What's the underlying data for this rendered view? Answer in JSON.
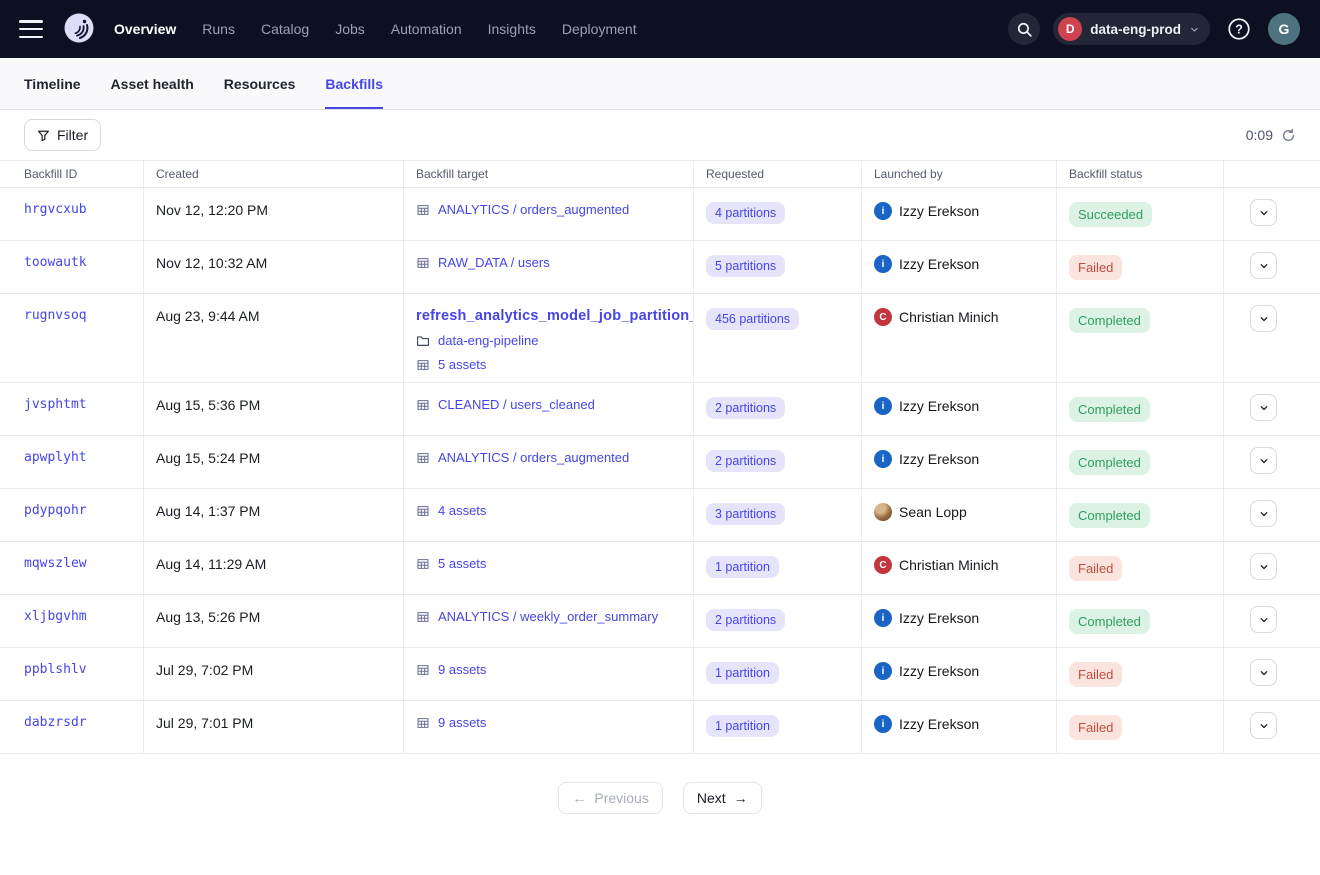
{
  "colors": {
    "accent": "#4645e7",
    "nav_bg": "#0d1020",
    "success_bg": "#dcf2e4",
    "success_text": "#2e9e5e",
    "failure_bg": "#fbe3de",
    "failure_text": "#bf4d3e",
    "partition_pill_bg": "#e6e4fa",
    "partition_pill_text": "#4645e7",
    "deployment_badge": "#cf4250",
    "izzy_avatar": "#1a64c4",
    "christian_avatar": "#c3353f"
  },
  "nav": {
    "menu_icon": "hamburger-icon",
    "logo_icon": "dagster-logo",
    "items": [
      "Overview",
      "Runs",
      "Catalog",
      "Jobs",
      "Automation",
      "Insights",
      "Deployment"
    ],
    "active_item": "Overview",
    "search_icon": "search-icon",
    "deployment_switcher": {
      "initial": "D",
      "label": "data-eng-prod",
      "chevron_icon": "chevron-down-icon"
    },
    "help_icon": "help-icon",
    "user_initial": "G"
  },
  "tabs": {
    "items": [
      "Timeline",
      "Asset health",
      "Resources",
      "Backfills"
    ],
    "active": "Backfills"
  },
  "toolbar": {
    "filter_label": "Filter",
    "filter_icon": "funnel-icon",
    "timer": "0:09",
    "refresh_icon": "refresh-icon"
  },
  "table": {
    "columns": [
      "Backfill ID",
      "Created",
      "Backfill target",
      "Requested",
      "Launched by",
      "Backfill status",
      ""
    ],
    "rows": [
      {
        "id": "hrgvcxub",
        "created": "Nov 12, 12:20 PM",
        "target": [
          {
            "icon": "table-icon",
            "text": "ANALYTICS / orders_augmented"
          }
        ],
        "requested": "4 partitions",
        "launched_by": {
          "name": "Izzy Erekson",
          "avatar": {
            "kind": "initial",
            "text": "i",
            "color": "#1a64c4"
          }
        },
        "status": {
          "label": "Succeeded",
          "kind": "success"
        }
      },
      {
        "id": "toowautk",
        "created": "Nov 12, 10:32 AM",
        "target": [
          {
            "icon": "table-icon",
            "text": "RAW_DATA / users"
          }
        ],
        "requested": "5 partitions",
        "launched_by": {
          "name": "Izzy Erekson",
          "avatar": {
            "kind": "initial",
            "text": "i",
            "color": "#1a64c4"
          }
        },
        "status": {
          "label": "Failed",
          "kind": "failure"
        }
      },
      {
        "id": "rugnvsoq",
        "created": "Aug 23, 9:44 AM",
        "tall": true,
        "target": [
          {
            "style": "title",
            "text": "refresh_analytics_model_job_partition_set"
          },
          {
            "icon": "folder-icon",
            "text": "data-eng-pipeline"
          },
          {
            "icon": "table-icon",
            "text": "5 assets"
          }
        ],
        "requested": "456 partitions",
        "launched_by": {
          "name": "Christian Minich",
          "avatar": {
            "kind": "initial",
            "text": "C",
            "color": "#c3353f"
          }
        },
        "status": {
          "label": "Completed",
          "kind": "success"
        }
      },
      {
        "id": "jvsphtmt",
        "created": "Aug 15, 5:36 PM",
        "target": [
          {
            "icon": "table-icon",
            "text": "CLEANED / users_cleaned"
          }
        ],
        "requested": "2 partitions",
        "launched_by": {
          "name": "Izzy Erekson",
          "avatar": {
            "kind": "initial",
            "text": "i",
            "color": "#1a64c4"
          }
        },
        "status": {
          "label": "Completed",
          "kind": "success"
        }
      },
      {
        "id": "apwplyht",
        "created": "Aug 15, 5:24 PM",
        "target": [
          {
            "icon": "table-icon",
            "text": "ANALYTICS / orders_augmented"
          }
        ],
        "requested": "2 partitions",
        "launched_by": {
          "name": "Izzy Erekson",
          "avatar": {
            "kind": "initial",
            "text": "i",
            "color": "#1a64c4"
          }
        },
        "status": {
          "label": "Completed",
          "kind": "success"
        }
      },
      {
        "id": "pdypqohr",
        "created": "Aug 14, 1:37 PM",
        "target": [
          {
            "icon": "table-icon",
            "text": "4 assets"
          }
        ],
        "requested": "3 partitions",
        "launched_by": {
          "name": "Sean Lopp",
          "avatar": {
            "kind": "photo"
          }
        },
        "status": {
          "label": "Completed",
          "kind": "success"
        }
      },
      {
        "id": "mqwszlew",
        "created": "Aug 14, 11:29 AM",
        "target": [
          {
            "icon": "table-icon",
            "text": "5 assets"
          }
        ],
        "requested": "1 partition",
        "launched_by": {
          "name": "Christian Minich",
          "avatar": {
            "kind": "initial",
            "text": "C",
            "color": "#c3353f"
          }
        },
        "status": {
          "label": "Failed",
          "kind": "failure"
        }
      },
      {
        "id": "xljbgvhm",
        "created": "Aug 13, 5:26 PM",
        "target": [
          {
            "icon": "table-icon",
            "text": "ANALYTICS / weekly_order_summary"
          }
        ],
        "requested": "2 partitions",
        "launched_by": {
          "name": "Izzy Erekson",
          "avatar": {
            "kind": "initial",
            "text": "i",
            "color": "#1a64c4"
          }
        },
        "status": {
          "label": "Completed",
          "kind": "success"
        }
      },
      {
        "id": "ppblshlv",
        "created": "Jul 29, 7:02 PM",
        "target": [
          {
            "icon": "table-icon",
            "text": "9 assets"
          }
        ],
        "requested": "1 partition",
        "launched_by": {
          "name": "Izzy Erekson",
          "avatar": {
            "kind": "initial",
            "text": "i",
            "color": "#1a64c4"
          }
        },
        "status": {
          "label": "Failed",
          "kind": "failure"
        }
      },
      {
        "id": "dabzrsdr",
        "created": "Jul 29, 7:01 PM",
        "target": [
          {
            "icon": "table-icon",
            "text": "9 assets"
          }
        ],
        "requested": "1 partition",
        "launched_by": {
          "name": "Izzy Erekson",
          "avatar": {
            "kind": "initial",
            "text": "i",
            "color": "#1a64c4"
          }
        },
        "status": {
          "label": "Failed",
          "kind": "failure"
        }
      }
    ]
  },
  "pagination": {
    "previous_label": "Previous",
    "next_label": "Next",
    "previous_enabled": false
  }
}
